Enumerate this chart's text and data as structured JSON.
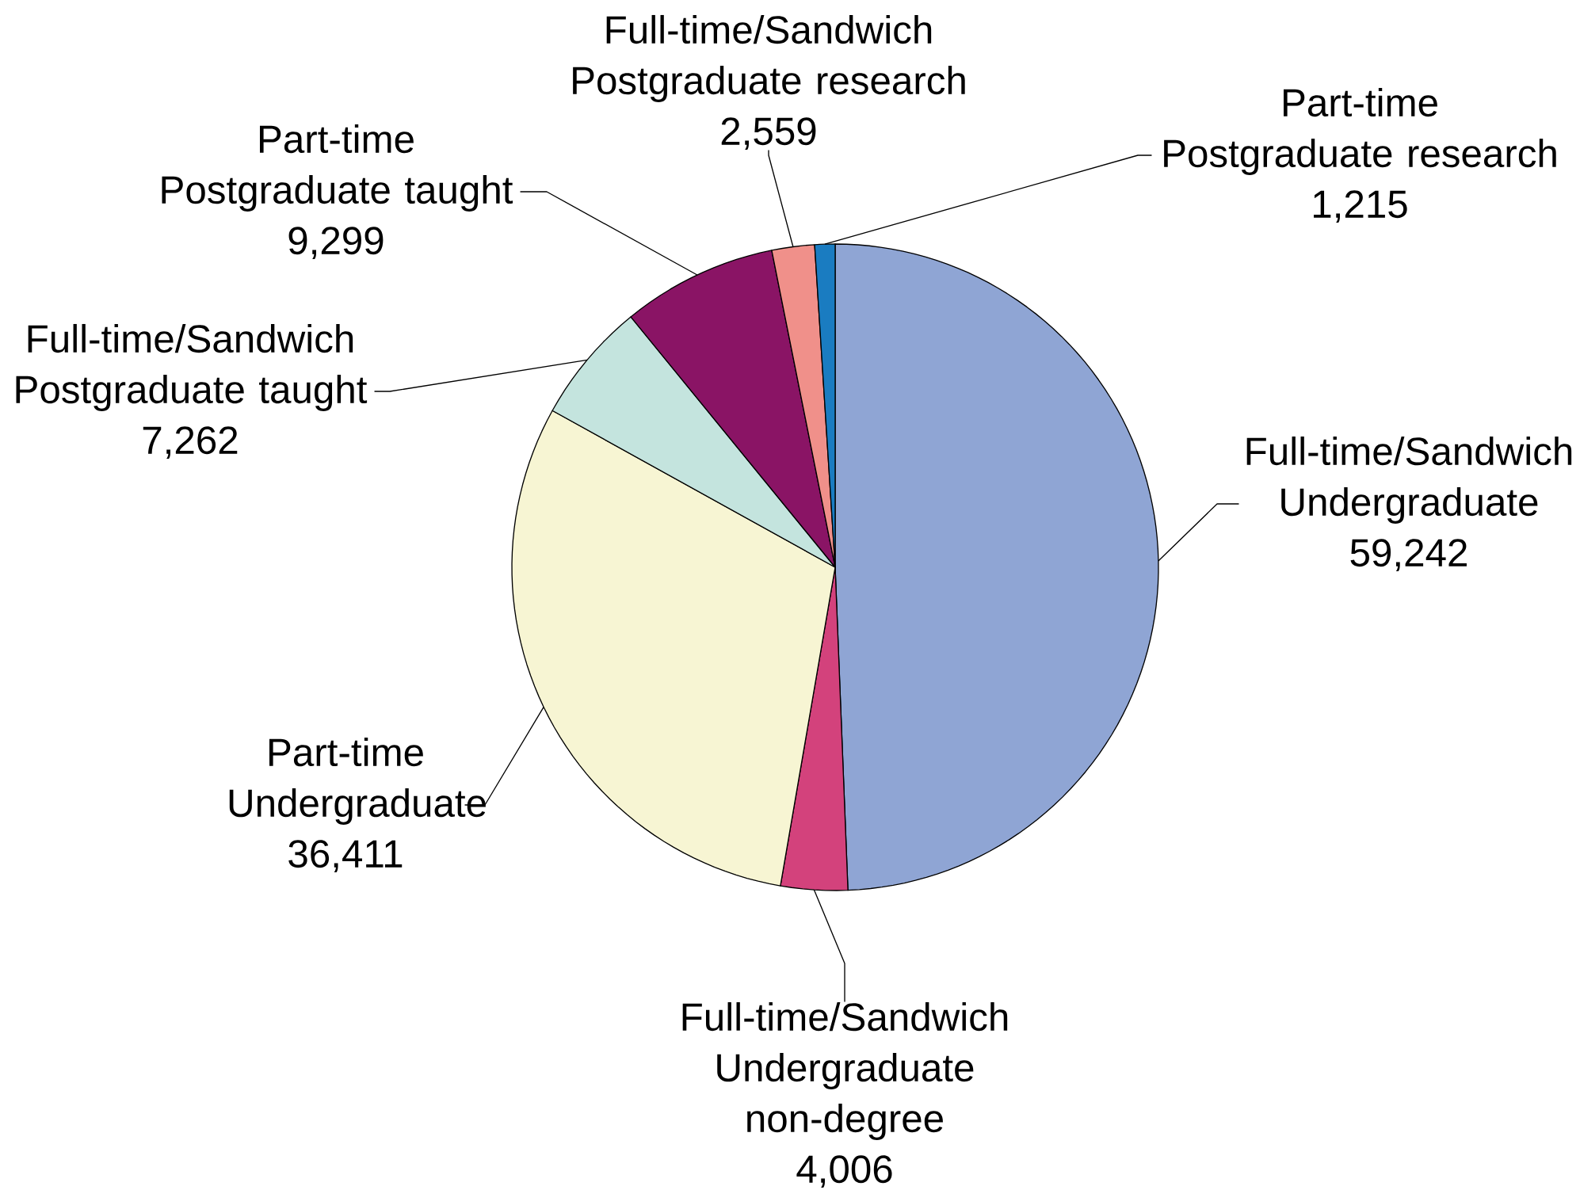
{
  "chart_data": {
    "type": "pie",
    "categories": [
      "Full-time/Sandwich Undergraduate",
      "Full-time/Sandwich Undergraduate non-degree",
      "Part-time Undergraduate",
      "Full-time/Sandwich Postgraduate taught",
      "Part-time Postgraduate taught",
      "Full-time/Sandwich Postgraduate research",
      "Part-time Postgraduate research"
    ],
    "values": [
      59242,
      4006,
      36411,
      7262,
      9299,
      2559,
      1215
    ],
    "value_labels": [
      "59,242",
      "4,006",
      "36,411",
      "7,262",
      "9,299",
      "2,559",
      "1,215"
    ],
    "colors": [
      "#8fa5d4",
      "#d3427c",
      "#f7f5d3",
      "#c4e4de",
      "#8a1465",
      "#f0908a",
      "#1a7cc1"
    ]
  }
}
